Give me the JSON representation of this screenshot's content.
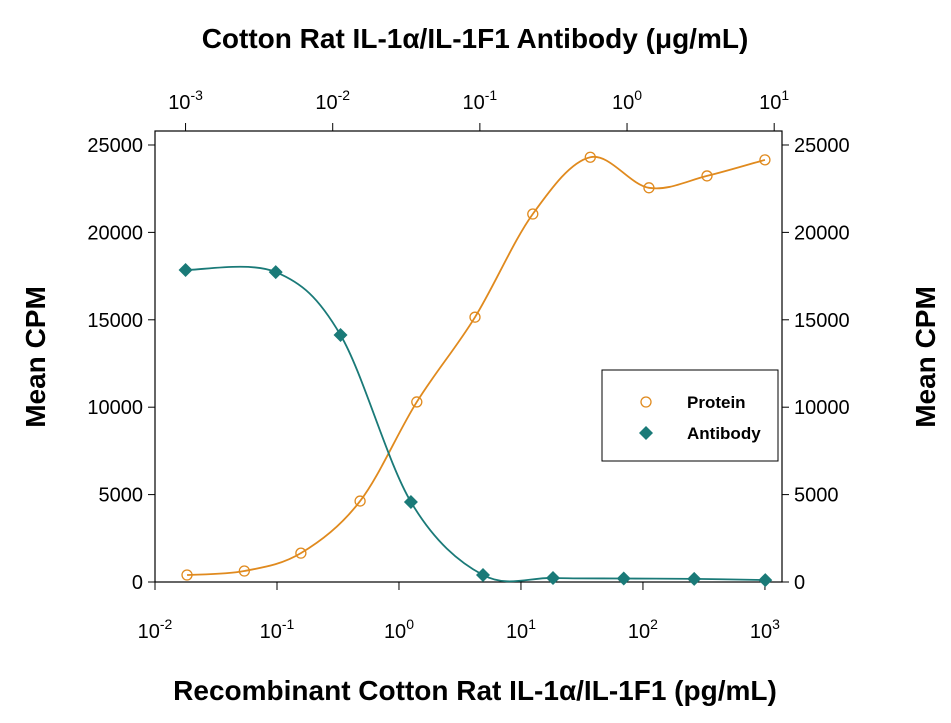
{
  "chart_data": {
    "type": "scatter",
    "title": "Cotton Rat IL-1α/IL-1F1 Antibody (μg/mL)",
    "x_label": "Recombinant Cotton Rat IL-1α/IL-1F1 (pg/mL)",
    "y_label": "Mean CPM",
    "y2_label": "Mean CPM",
    "x_scale": "log",
    "xlim": [
      0.01,
      1380
    ],
    "xticks": [
      {
        "value": 0.01,
        "label": "10",
        "sup": "-2"
      },
      {
        "value": 0.1,
        "label": "10",
        "sup": "-1"
      },
      {
        "value": 1,
        "label": "10",
        "sup": "0"
      },
      {
        "value": 10,
        "label": "10",
        "sup": "1"
      },
      {
        "value": 100,
        "label": "10",
        "sup": "2"
      },
      {
        "value": 1000,
        "label": "10",
        "sup": "3"
      }
    ],
    "x2lim": [
      0.00062,
      11.3
    ],
    "x2ticks": [
      {
        "value": 0.001,
        "label": "10",
        "sup": "-3"
      },
      {
        "value": 0.01,
        "label": "10",
        "sup": "-2"
      },
      {
        "value": 0.1,
        "label": "10",
        "sup": "-1"
      },
      {
        "value": 1,
        "label": "10",
        "sup": "0"
      },
      {
        "value": 10,
        "label": "10",
        "sup": "1"
      }
    ],
    "ylim": [
      0,
      25800
    ],
    "yticks": [
      0,
      5000,
      10000,
      15000,
      20000,
      25000
    ],
    "y2lim": [
      0,
      25800
    ],
    "y2ticks": [
      0,
      5000,
      10000,
      15000,
      20000,
      25000
    ],
    "legend": "right",
    "series": [
      {
        "name": "Protein",
        "color": "#e08a1e",
        "marker": "circle",
        "x": [
          0.0183,
          0.054,
          0.157,
          0.48,
          1.4,
          4.2,
          12.5,
          37,
          112,
          335,
          1000
        ],
        "values": [
          400,
          630,
          1650,
          4630,
          10300,
          15150,
          21050,
          24300,
          22550,
          23230,
          24150
        ]
      },
      {
        "name": "Antibody",
        "color": "#1a7a78",
        "marker": "diamond",
        "axis": "x2",
        "x": [
          0.001,
          0.0041,
          0.0113,
          0.034,
          0.105,
          0.314,
          0.95,
          2.86,
          8.7
        ],
        "values": [
          17850,
          17730,
          14130,
          4580,
          400,
          230,
          200,
          180,
          110
        ]
      }
    ]
  }
}
